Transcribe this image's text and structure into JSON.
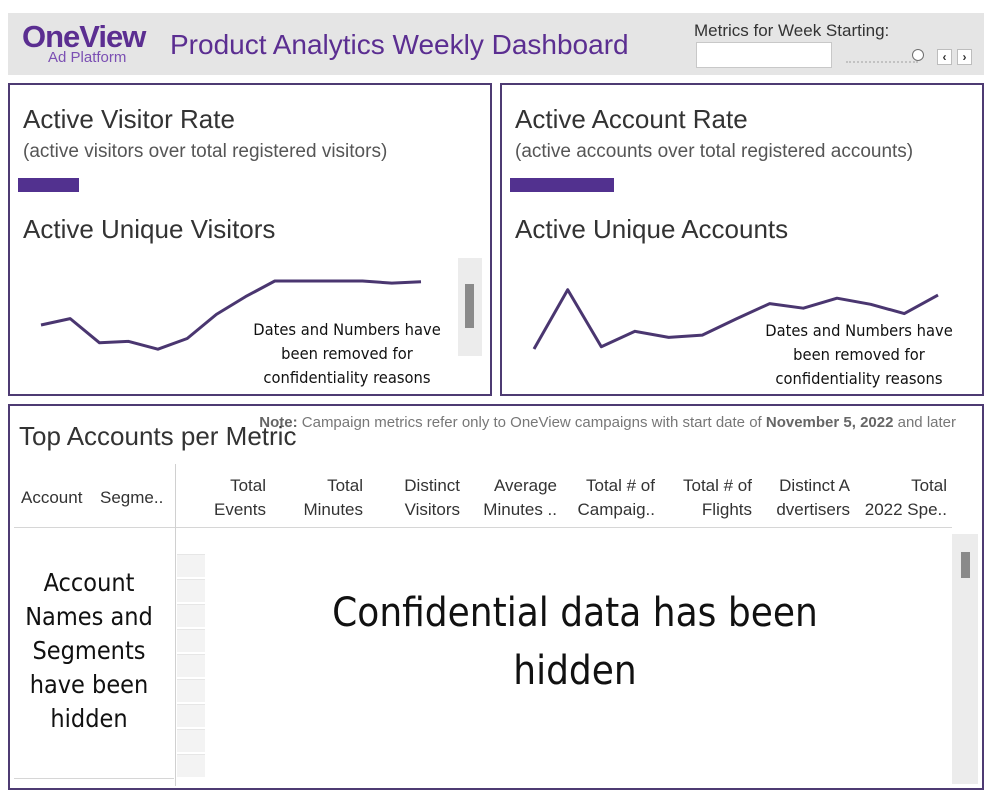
{
  "header": {
    "logo_main": "OneView",
    "logo_sub": "Ad Platform",
    "title": "Product Analytics Weekly Dashboard",
    "week_label": "Metrics for Week Starting:",
    "week_value": "",
    "prev_symbol": "‹",
    "next_symbol": "›"
  },
  "visitor_panel": {
    "rate_title": "Active Visitor Rate",
    "rate_subtitle": "(active visitors over total registered visitors)",
    "unique_title": "Active Unique Visitors",
    "note": "Dates and Numbers have been removed for confidentiality reasons",
    "sparkline": [
      0.38,
      0.47,
      0.13,
      0.15,
      0.04,
      0.19,
      0.53,
      0.78,
      1.0,
      1.0,
      1.0,
      1.0,
      0.97,
      0.99
    ]
  },
  "account_panel": {
    "rate_title": "Active Account Rate",
    "rate_subtitle": "(active accounts over total registered accounts)",
    "unique_title": "Active Unique Accounts",
    "note": "Dates and Numbers have been removed for confidentiality reasons",
    "sparkline": [
      0.0,
      0.77,
      0.03,
      0.23,
      0.15,
      0.18,
      0.39,
      0.59,
      0.53,
      0.66,
      0.58,
      0.46,
      0.7
    ]
  },
  "top_accounts": {
    "title": "Top Accounts per Metric",
    "note_label": "Note:",
    "note_text": "Campaign metrics refer only to OneView campaigns with start date of",
    "note_date": "November 5, 2022",
    "note_tail": "and later",
    "row_headers": [
      "Account",
      "Segme.."
    ],
    "columns": [
      "Total\nEvents",
      "Total\nMinutes",
      "Distinct\nVisitors",
      "Average\nMinutes ..",
      "Total # of\nCampaig..",
      "Total # of\nFlights",
      "Distinct A\ndvertisers",
      "Total\n2022 Spe.."
    ],
    "accounts_hidden": "Account Names and Segments have been hidden",
    "confidential": "Confidential data has been hidden"
  },
  "colors": {
    "brand": "#5b2e91",
    "border": "#4e3b73",
    "bar": "#52318f",
    "line": "#4a3670"
  }
}
